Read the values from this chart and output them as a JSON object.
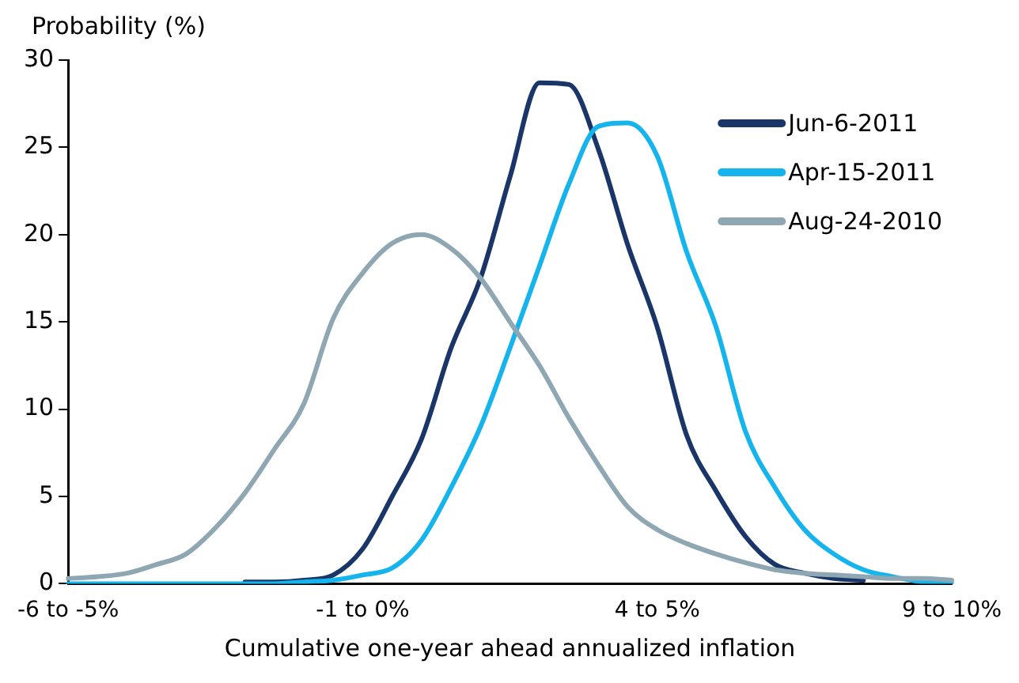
{
  "chart_data": {
    "type": "line",
    "xlabel": "Cumulative one-year ahead annualized inflation",
    "ylabel": "Probability (%)",
    "categories": [
      "-6 to -5%",
      null,
      null,
      null,
      null,
      null,
      null,
      null,
      null,
      null,
      "-1 to 0%",
      null,
      null,
      null,
      null,
      null,
      null,
      null,
      null,
      null,
      "4 to 5%",
      null,
      null,
      null,
      null,
      null,
      null,
      null,
      null,
      null,
      "9 to 10%"
    ],
    "series": [
      {
        "name": "Jun-6-2011",
        "color": "#1a3668",
        "values": [
          null,
          null,
          null,
          null,
          null,
          null,
          0.1,
          0.1,
          0.2,
          0.5,
          2.0,
          5.0,
          8.3,
          13.5,
          17.5,
          23.3,
          28.7,
          28.6,
          24.9,
          19.4,
          14.7,
          8.5,
          5.3,
          2.7,
          1.1,
          0.6,
          0.3,
          0.2,
          null,
          null,
          null
        ]
      },
      {
        "name": "Apr-15-2011",
        "color": "#16b4ec",
        "values": [
          0,
          0,
          0,
          0,
          0,
          0,
          0,
          0,
          0.1,
          0.2,
          0.5,
          0.9,
          2.5,
          5.5,
          9.0,
          13.5,
          18.2,
          22.9,
          26.2,
          26.4,
          24.5,
          19.0,
          14.7,
          8.7,
          5.5,
          3.1,
          1.7,
          0.8,
          0.4,
          0.1,
          0
        ]
      },
      {
        "name": "Aug-24-2010",
        "color": "#8fa7b2",
        "values": [
          0.3,
          0.4,
          0.6,
          1.1,
          1.7,
          3.2,
          5.2,
          7.7,
          10.3,
          15.2,
          17.8,
          19.5,
          20.0,
          19.2,
          17.5,
          15.0,
          12.5,
          9.5,
          6.8,
          4.4,
          3.1,
          2.3,
          1.7,
          1.2,
          0.8,
          0.6,
          0.5,
          0.4,
          0.3,
          0.3,
          0.2
        ]
      }
    ],
    "ylim": [
      0,
      30
    ],
    "yticks": [
      0,
      5,
      10,
      15,
      20,
      25,
      30
    ],
    "grid": false,
    "legend": "top right",
    "marker": "none",
    "line_style": "solid"
  }
}
